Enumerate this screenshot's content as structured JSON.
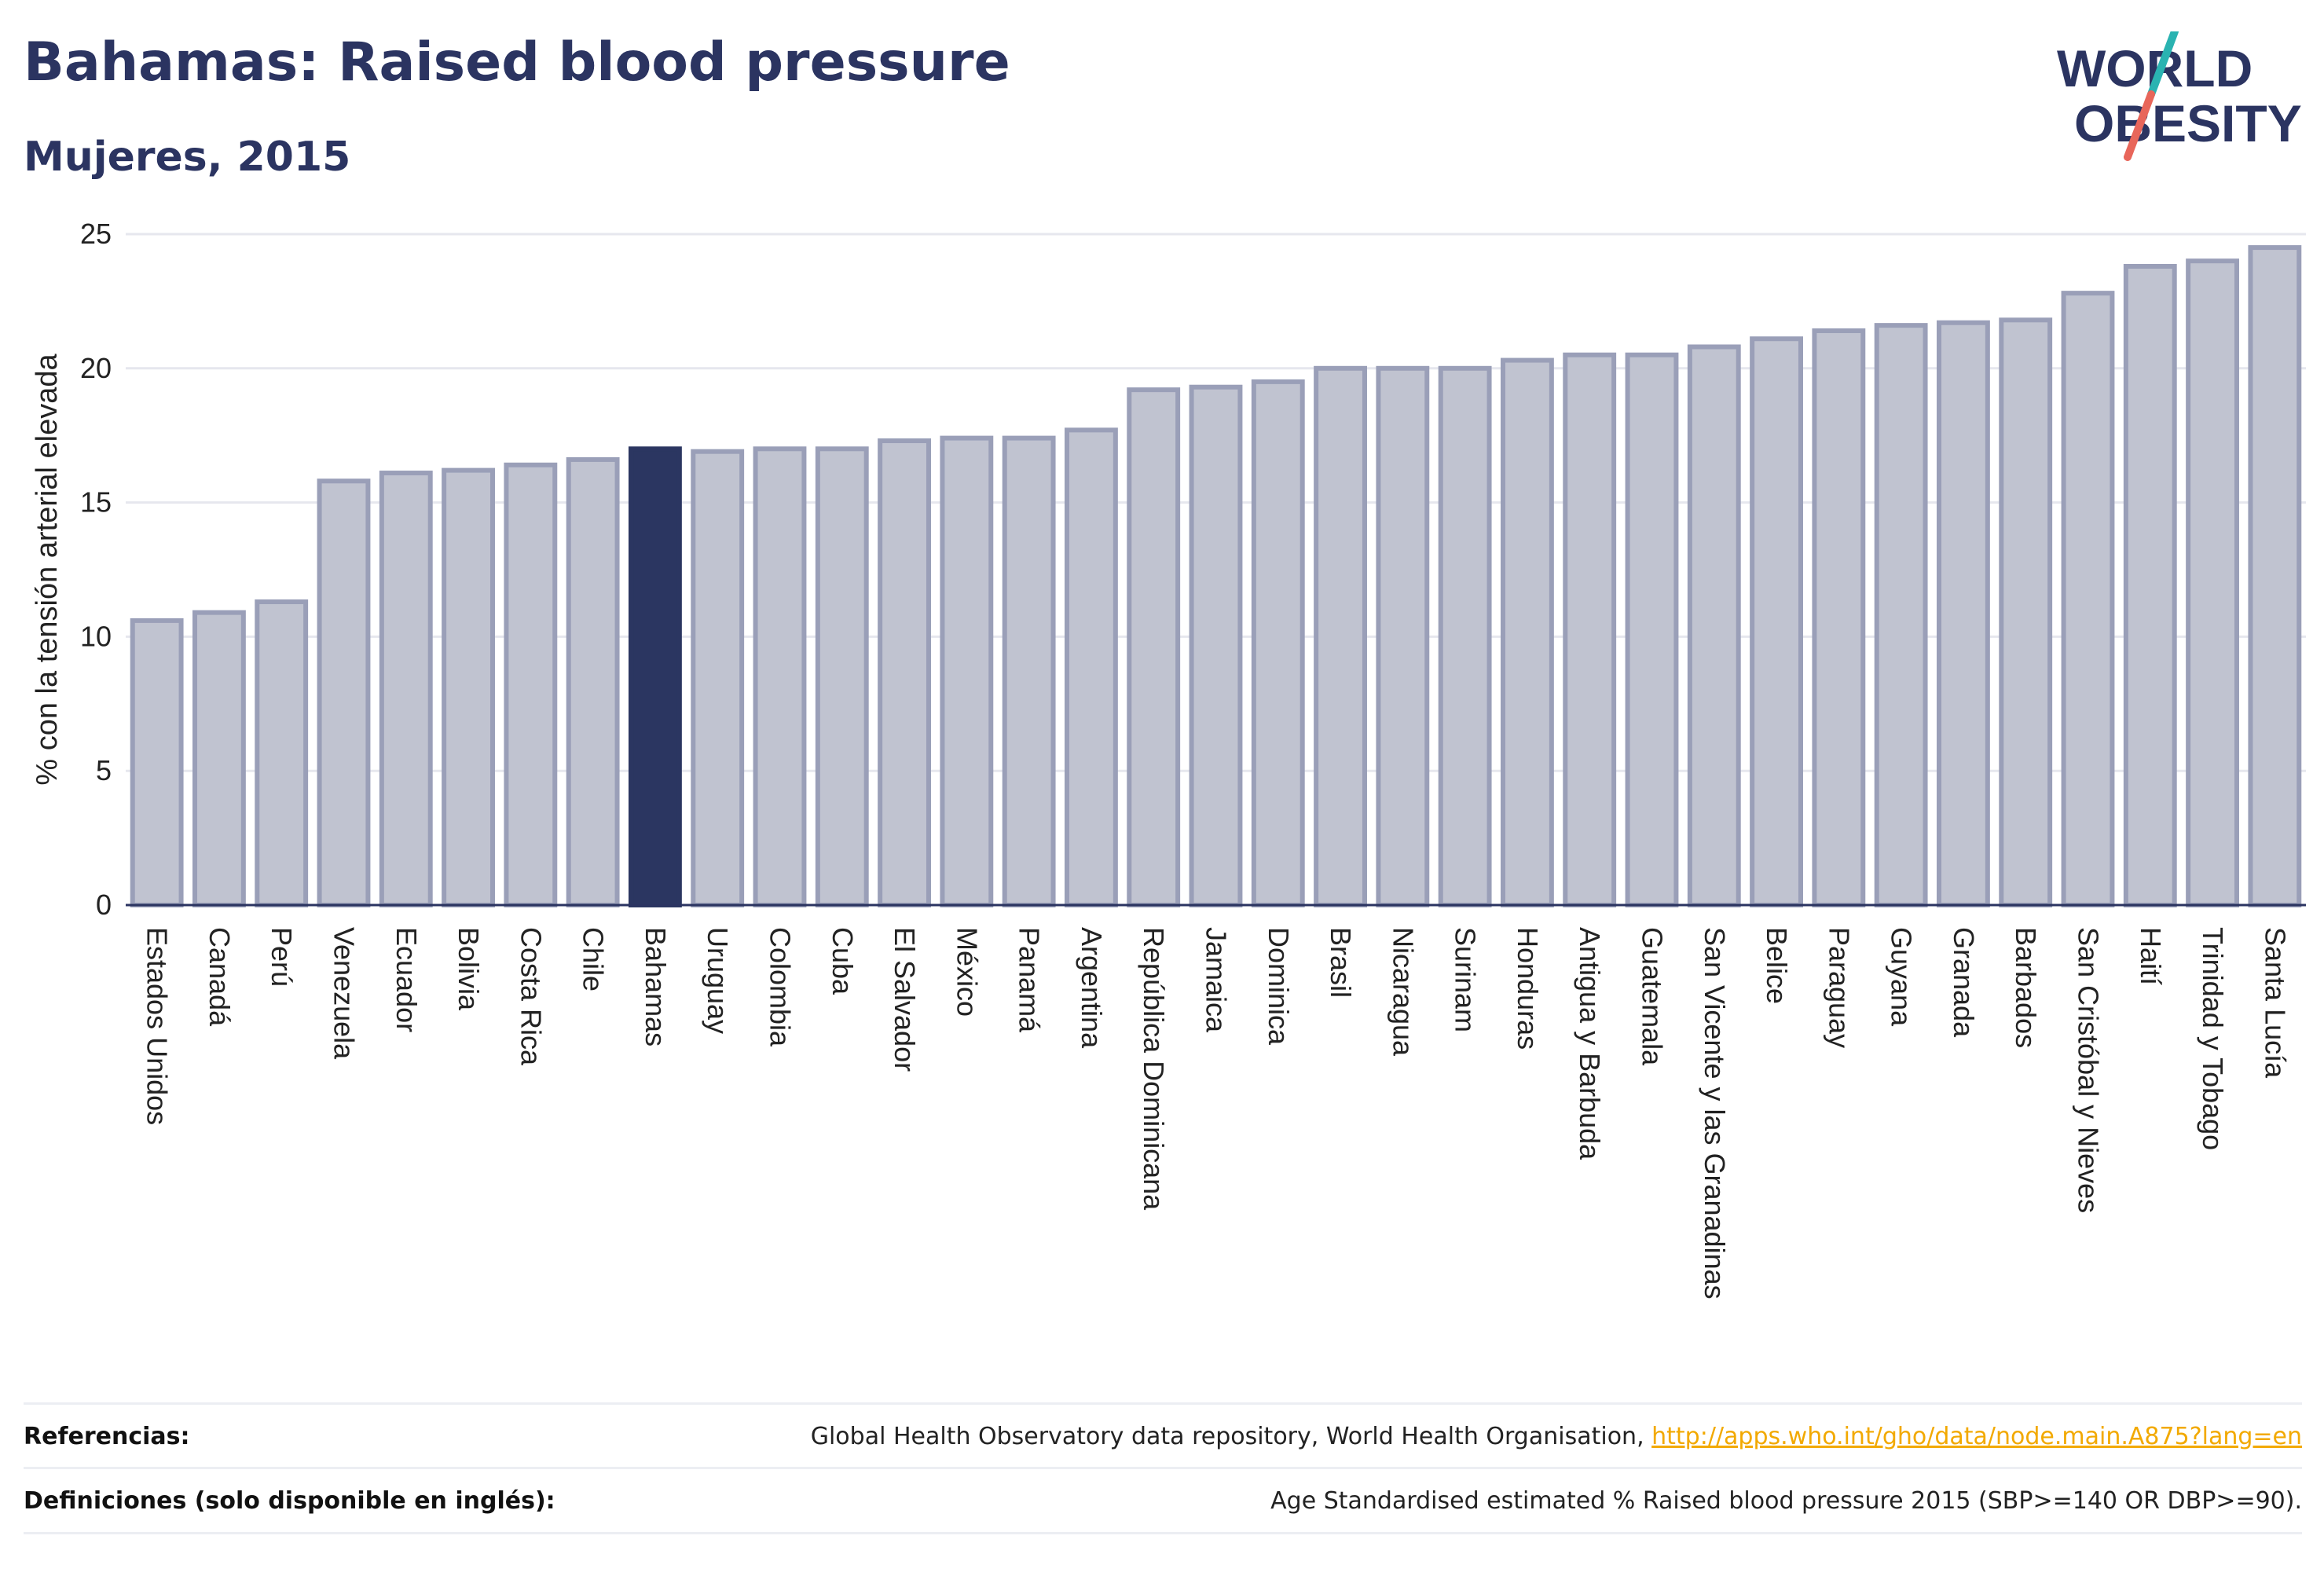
{
  "header": {
    "title": "Bahamas: Raised blood pressure",
    "subtitle": "Mujeres, 2015"
  },
  "logo": {
    "line1": "WORLD",
    "line2": "OBESITY",
    "colors": {
      "text": "#2b3461",
      "slash_teal": "#2ab3b1",
      "slash_coral": "#e8665a"
    }
  },
  "colors": {
    "bar_fill": "#c0c3d0",
    "bar_stroke": "#9a9fb8",
    "highlight_fill": "#2b3661",
    "axis": "#2b3461",
    "grid": "#e6e7ee"
  },
  "chart_data": {
    "type": "bar",
    "title": "",
    "xlabel": "",
    "ylabel": "% con la tensión arterial elevada",
    "ylim": [
      0,
      25
    ],
    "yticks": [
      0,
      5,
      10,
      15,
      20,
      25
    ],
    "grid": true,
    "highlight": "Bahamas",
    "categories": [
      "Estados Unidos",
      "Canadá",
      "Perú",
      "Venezuela",
      "Ecuador",
      "Bolivia",
      "Costa Rica",
      "Chile",
      "Bahamas",
      "Uruguay",
      "Colombia",
      "Cuba",
      "El Salvador",
      "México",
      "Panamá",
      "Argentina",
      "República Dominicana",
      "Jamaica",
      "Dominica",
      "Brasil",
      "Nicaragua",
      "Surinam",
      "Honduras",
      "Antigua y Barbuda",
      "Guatemala",
      "San Vicente y las Granadinas",
      "Belice",
      "Paraguay",
      "Guyana",
      "Granada",
      "Barbados",
      "San Cristóbal y Nieves",
      "Haití",
      "Trinidad y Tobago",
      "Santa Lucía"
    ],
    "values": [
      10.6,
      10.9,
      11.3,
      15.8,
      16.1,
      16.2,
      16.4,
      16.6,
      17.0,
      16.9,
      17.0,
      17.0,
      17.3,
      17.4,
      17.4,
      17.7,
      19.2,
      19.3,
      19.5,
      20.0,
      20.0,
      20.0,
      20.3,
      20.5,
      20.5,
      20.8,
      21.1,
      21.4,
      21.6,
      21.7,
      21.8,
      22.8,
      23.8,
      24.0,
      24.5
    ]
  },
  "footer": {
    "references_label": "Referencias:",
    "references_text": "Global Health Observatory data repository, World Health Organisation, ",
    "references_link": "http://apps.who.int/gho/data/node.main.A875?lang=en",
    "definitions_label": "Definiciones (solo disponible en inglés):",
    "definitions_text": "Age Standardised estimated % Raised blood pressure 2015 (SBP>=140 OR DBP>=90)."
  }
}
